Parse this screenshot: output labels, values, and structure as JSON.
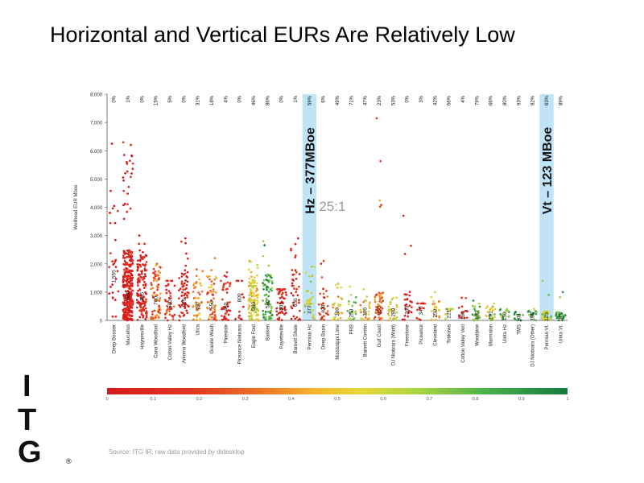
{
  "title": "Horizontal and Vertical EURs Are Relatively Low",
  "source": "Source: ITG IR, raw data provided by didesktop",
  "logo": {
    "letters": [
      "I",
      "T",
      "G"
    ],
    "mark": "®"
  },
  "annotations": {
    "hz_band": "Hz – 377MBoe",
    "vt_band": "Vt – 123 MBoe",
    "ratio": "25:1"
  },
  "colorbar": {
    "ticks": [
      "0",
      "0.1",
      "0.2",
      "0.3",
      "0.4",
      "0.5",
      "0.6",
      "0.7",
      "0.8",
      "0.9",
      "1"
    ]
  },
  "colors": {
    "red": "#d7191c",
    "orange": "#f07b25",
    "yellow": "#e6d83a",
    "green": "#4cb14c",
    "dark_green": "#137a3c",
    "band": "#bfe3f7"
  },
  "chart_data": {
    "type": "scatter",
    "ylabel": "Wellhead EUR Mboe",
    "ylim": [
      0,
      8000
    ],
    "yticks": [
      "0",
      "1,000",
      "2,000",
      "3,000",
      "4,000",
      "5,000",
      "6,000",
      "7,000",
      "8,000"
    ],
    "categories": [
      "Deep Bossier",
      "Marcellus",
      "Haynesville",
      "Cana Woodford",
      "Cotton Valley Hz",
      "Arkoma Woodford",
      "Utica",
      "Granite Wash",
      "Pinedale",
      "Piceance Niobrara",
      "Eagle Ford",
      "Bakken",
      "Fayetteville",
      "Barnett Shale",
      "Permian Hz",
      "Deep Basin",
      "Mississippi Lime",
      "PRB",
      "Barnett Combo",
      "Gulf Coast",
      "DJ Niobrara (Wattl)",
      "Freestone",
      "Piceance",
      "Cleveland",
      "Tonkawa",
      "Cotton Valley Vert",
      "Woodbine",
      "Marmaton",
      "Uinta Hz",
      "TMS",
      "DJ Niobrara (Other)",
      "Permian Vt.",
      "Uinta Vt."
    ],
    "top_percent": [
      "0%",
      "1%",
      "0%",
      "15%",
      "5%",
      "0%",
      "31%",
      "18%",
      "4%",
      "0%",
      "46%",
      "86%",
      "0%",
      "1%",
      "59%",
      "6%",
      "49%",
      "71%",
      "47%",
      "23%",
      "53%",
      "0%",
      "3%",
      "42%",
      "66%",
      "4%",
      "79%",
      "66%",
      "80%",
      "93%",
      "82%",
      "63%",
      "89%"
    ],
    "median_labels": [
      "1,555",
      "880",
      "845",
      "700",
      "580",
      "625",
      "490",
      "550",
      "480",
      "800",
      "500",
      "580",
      "501",
      "630",
      "377",
      "400",
      "300",
      "250",
      "300",
      "350",
      "280",
      "360",
      "340",
      "250",
      "221",
      "180",
      "180",
      "181",
      "150",
      "101",
      "136",
      "123",
      "102"
    ],
    "medians": [
      1555,
      880,
      845,
      700,
      580,
      625,
      490,
      550,
      480,
      800,
      500,
      580,
      501,
      630,
      377,
      400,
      300,
      250,
      300,
      350,
      280,
      360,
      340,
      250,
      221,
      180,
      180,
      181,
      150,
      101,
      136,
      123,
      102
    ],
    "max_values": [
      6250,
      6300,
      3000,
      2000,
      1400,
      2900,
      1800,
      2200,
      1700,
      1400,
      2100,
      2800,
      1100,
      2900,
      1900,
      2100,
      1300,
      1200,
      1100,
      7150,
      800,
      3700,
      600,
      1000,
      400,
      800,
      700,
      600,
      400,
      300,
      400,
      1400,
      1000
    ],
    "liquids_fraction": [
      0.02,
      0.0,
      0.01,
      0.3,
      0.15,
      0.02,
      0.4,
      0.35,
      0.1,
      0.01,
      0.55,
      0.85,
      0.01,
      0.05,
      0.6,
      0.2,
      0.5,
      0.7,
      0.5,
      0.3,
      0.55,
      0.05,
      0.1,
      0.45,
      0.65,
      0.1,
      0.78,
      0.65,
      0.8,
      0.92,
      0.82,
      0.63,
      0.88
    ],
    "point_counts": [
      30,
      300,
      120,
      70,
      40,
      60,
      40,
      55,
      45,
      12,
      110,
      70,
      50,
      40,
      35,
      30,
      25,
      20,
      25,
      55,
      25,
      25,
      15,
      20,
      15,
      15,
      30,
      25,
      15,
      10,
      15,
      40,
      30
    ],
    "highlight_categories": [
      "Permian Hz",
      "Permian Vt."
    ],
    "colorbar_range": [
      0,
      1
    ]
  }
}
